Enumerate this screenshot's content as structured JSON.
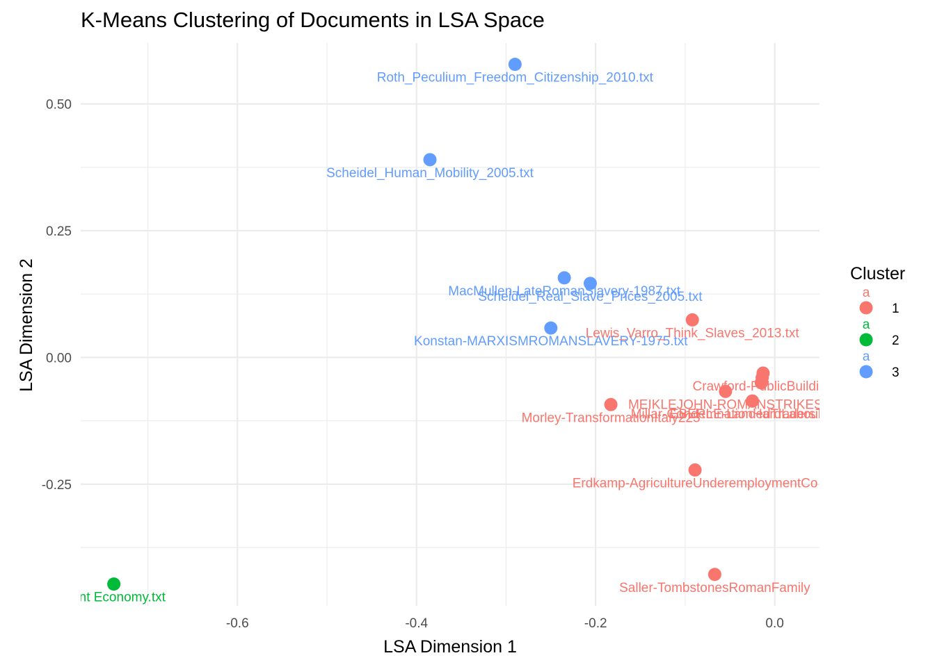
{
  "chart_data": {
    "type": "scatter",
    "title": "K-Means Clustering of Documents in LSA Space",
    "xlabel": "LSA Dimension 1",
    "ylabel": "LSA Dimension 2",
    "xlim": [
      -0.775,
      0.05
    ],
    "ylim": [
      -0.49,
      0.62
    ],
    "x_ticks": [
      -0.6,
      -0.4,
      -0.2,
      0.0
    ],
    "x_tick_labels": [
      "-0.6",
      "-0.4",
      "-0.2",
      "0.0"
    ],
    "x_minor_ticks": [
      -0.7,
      -0.5,
      -0.3,
      -0.1
    ],
    "y_ticks": [
      -0.25,
      0.0,
      0.25,
      0.5
    ],
    "y_tick_labels": [
      "-0.25",
      "0.00",
      "0.25",
      "0.50"
    ],
    "y_minor_ticks": [
      -0.375,
      -0.125,
      0.125,
      0.375
    ],
    "grid": true,
    "legend": {
      "title": "Cluster",
      "placement": "right",
      "key_glyph": "a",
      "entries": [
        {
          "label": "1",
          "color": "#F8766D"
        },
        {
          "label": "2",
          "color": "#00BA38"
        },
        {
          "label": "3",
          "color": "#619CFF"
        }
      ]
    },
    "points": [
      {
        "x": -0.29,
        "y": 0.578,
        "cluster": "3",
        "label": "Roth_Peculium_Freedom_Citizenship_2010.txt"
      },
      {
        "x": -0.385,
        "y": 0.39,
        "cluster": "3",
        "label": "Scheidel_Human_Mobility_2005.txt"
      },
      {
        "x": -0.235,
        "y": 0.157,
        "cluster": "3",
        "label": "MacMullen-LateRomanSlavery-1987.txt"
      },
      {
        "x": -0.206,
        "y": 0.146,
        "cluster": "3",
        "label": "Scheidel_Real_Slave_Prices_2005.txt"
      },
      {
        "x": -0.25,
        "y": 0.058,
        "cluster": "3",
        "label": "Konstan-MARXISMROMANSLAVERY-1975.txt"
      },
      {
        "x": -0.092,
        "y": 0.074,
        "cluster": "1",
        "label": "Lewis_Varro_Think_Slaves_2013.txt"
      },
      {
        "x": -0.013,
        "y": -0.031,
        "cluster": "1",
        "label": "Crawford-PublicBuilding"
      },
      {
        "x": -0.014,
        "y": -0.04,
        "cluster": "1",
        "label": ""
      },
      {
        "x": -0.015,
        "y": -0.05,
        "cluster": "1",
        "label": ""
      },
      {
        "x": -0.055,
        "y": -0.067,
        "cluster": "1",
        "label": "MEIKLEJOHN-ROMANSTRIKES"
      },
      {
        "x": -0.183,
        "y": -0.093,
        "cluster": "1",
        "label": "Morley-TransformationItaly225"
      },
      {
        "x": -0.025,
        "y": -0.086,
        "cluster": "1",
        "label": "EBERLE-LandedTradersTra"
      },
      {
        "x": -0.025,
        "y": -0.086,
        "cluster": "1",
        "label": "Millar-CondemnationHardLabour-1984.txt"
      },
      {
        "x": -0.089,
        "y": -0.222,
        "cluster": "1",
        "label": "Erdkamp-AgricultureUnderemploymentCo"
      },
      {
        "x": -0.067,
        "y": -0.428,
        "cluster": "1",
        "label": "Saller-TombstonesRomanFamily"
      },
      {
        "x": -0.738,
        "y": -0.447,
        "cluster": "2",
        "label": "cient Economy.txt"
      }
    ]
  }
}
